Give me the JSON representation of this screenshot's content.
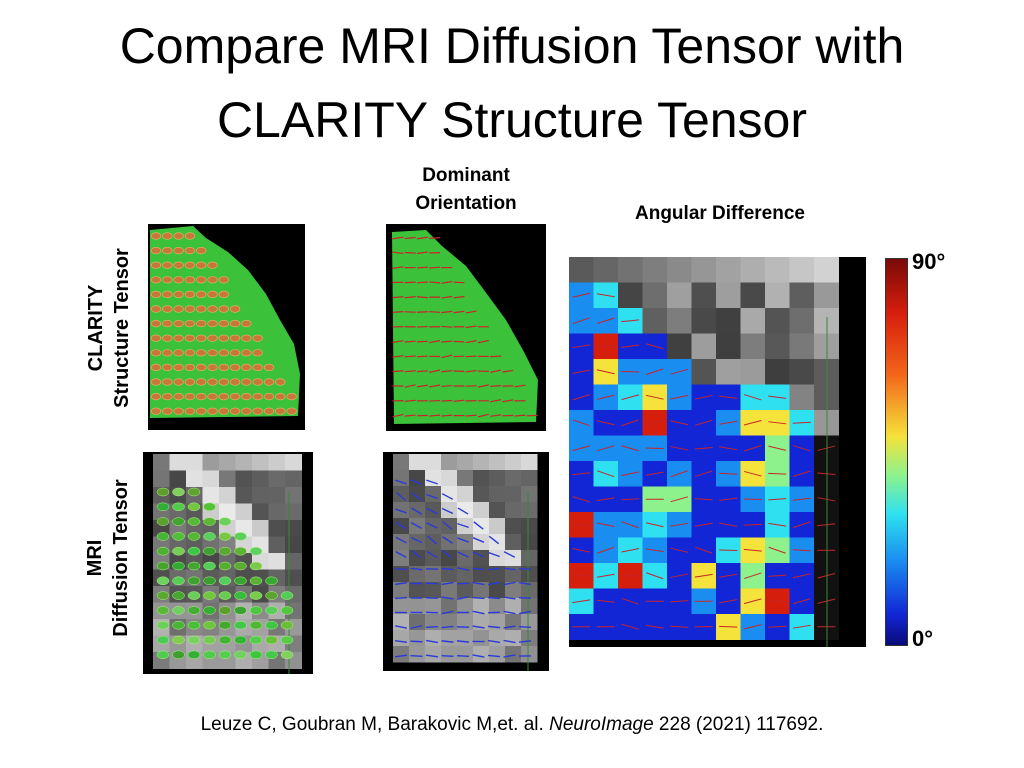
{
  "title": {
    "line1": "Compare MRI Diffusion Tensor with",
    "line2": "CLARITY Structure Tensor"
  },
  "columns": {
    "dominant_line1": "Dominant",
    "dominant_line2": "Orientation",
    "angular": "Angular Difference"
  },
  "rows": {
    "clarity_line1": "CLARITY",
    "clarity_line2": "Structure Tensor",
    "mri_line1": "MRI",
    "mri_line2": "Diffusion Tensor"
  },
  "colorbar": {
    "max_label": "90°",
    "min_label": "0°",
    "colors": [
      "#7a0a08",
      "#d61e0c",
      "#f3661a",
      "#f5e23a",
      "#8df28c",
      "#2fe1f0",
      "#1a8ef0",
      "#1226d6",
      "#0a0a78"
    ]
  },
  "citation": {
    "authors": "Leuze C, Goubran M, Barakovic M,et. al. ",
    "journal": "NeuroImage",
    "details": " 228 (2021) 117692."
  }
}
